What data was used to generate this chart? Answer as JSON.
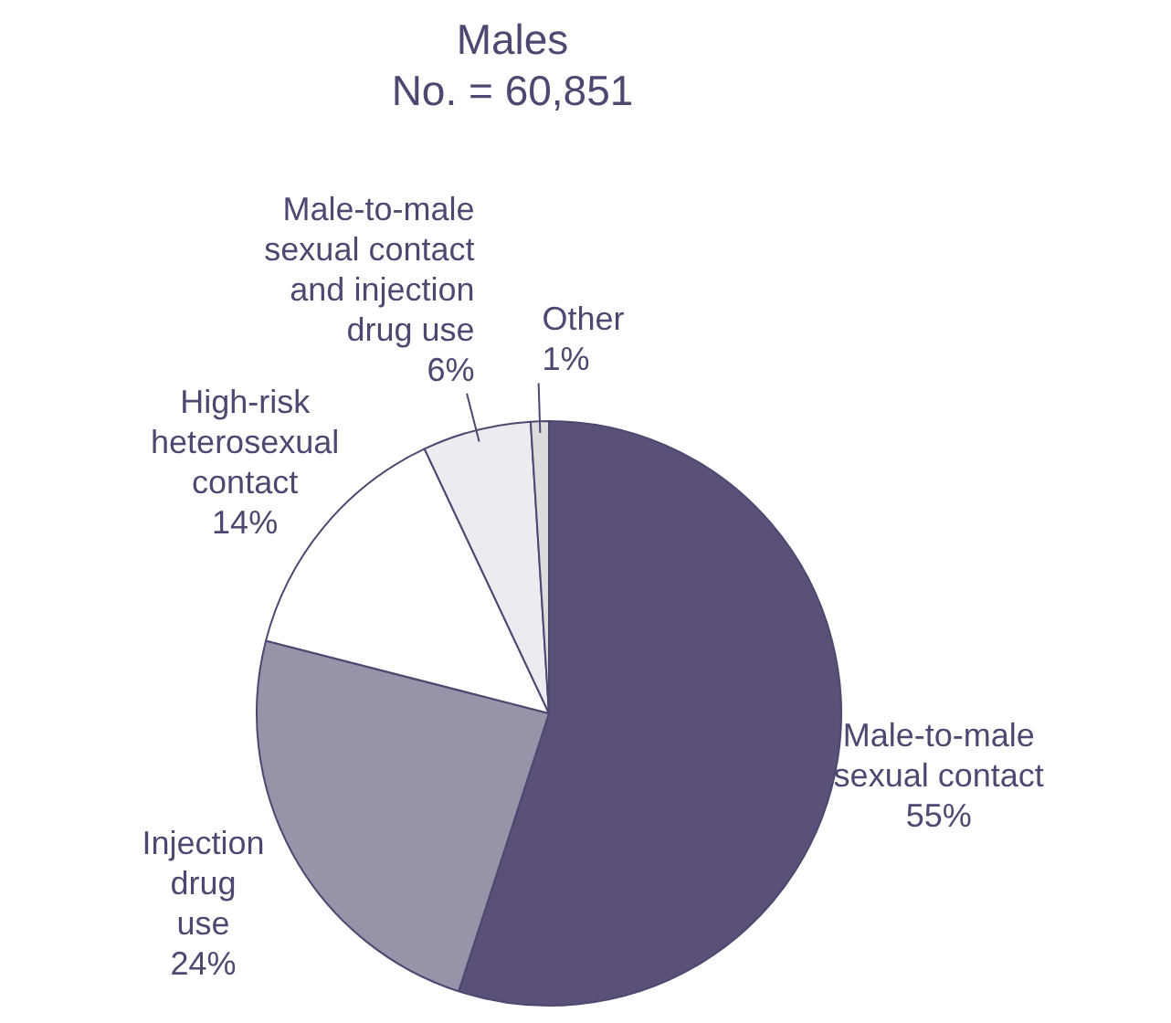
{
  "chart_data": {
    "type": "pie",
    "title": "Males",
    "subtitle": "No. = 60,851",
    "categories": [
      "Male-to-male\nsexual contact",
      "Injection\ndrug\nuse",
      "High-risk\nheterosexual\ncontact",
      "Male-to-male\nsexual contact\nand injection\ndrug use",
      "Other"
    ],
    "values": [
      55,
      24,
      14,
      6,
      1
    ],
    "value_labels": [
      "55%",
      "24%",
      "14%",
      "6%",
      "1%"
    ],
    "colors": [
      "#5a5078",
      "#9893a8",
      "#ffffff",
      "#ecebf0",
      "#dcdcdc"
    ],
    "legend": false
  }
}
